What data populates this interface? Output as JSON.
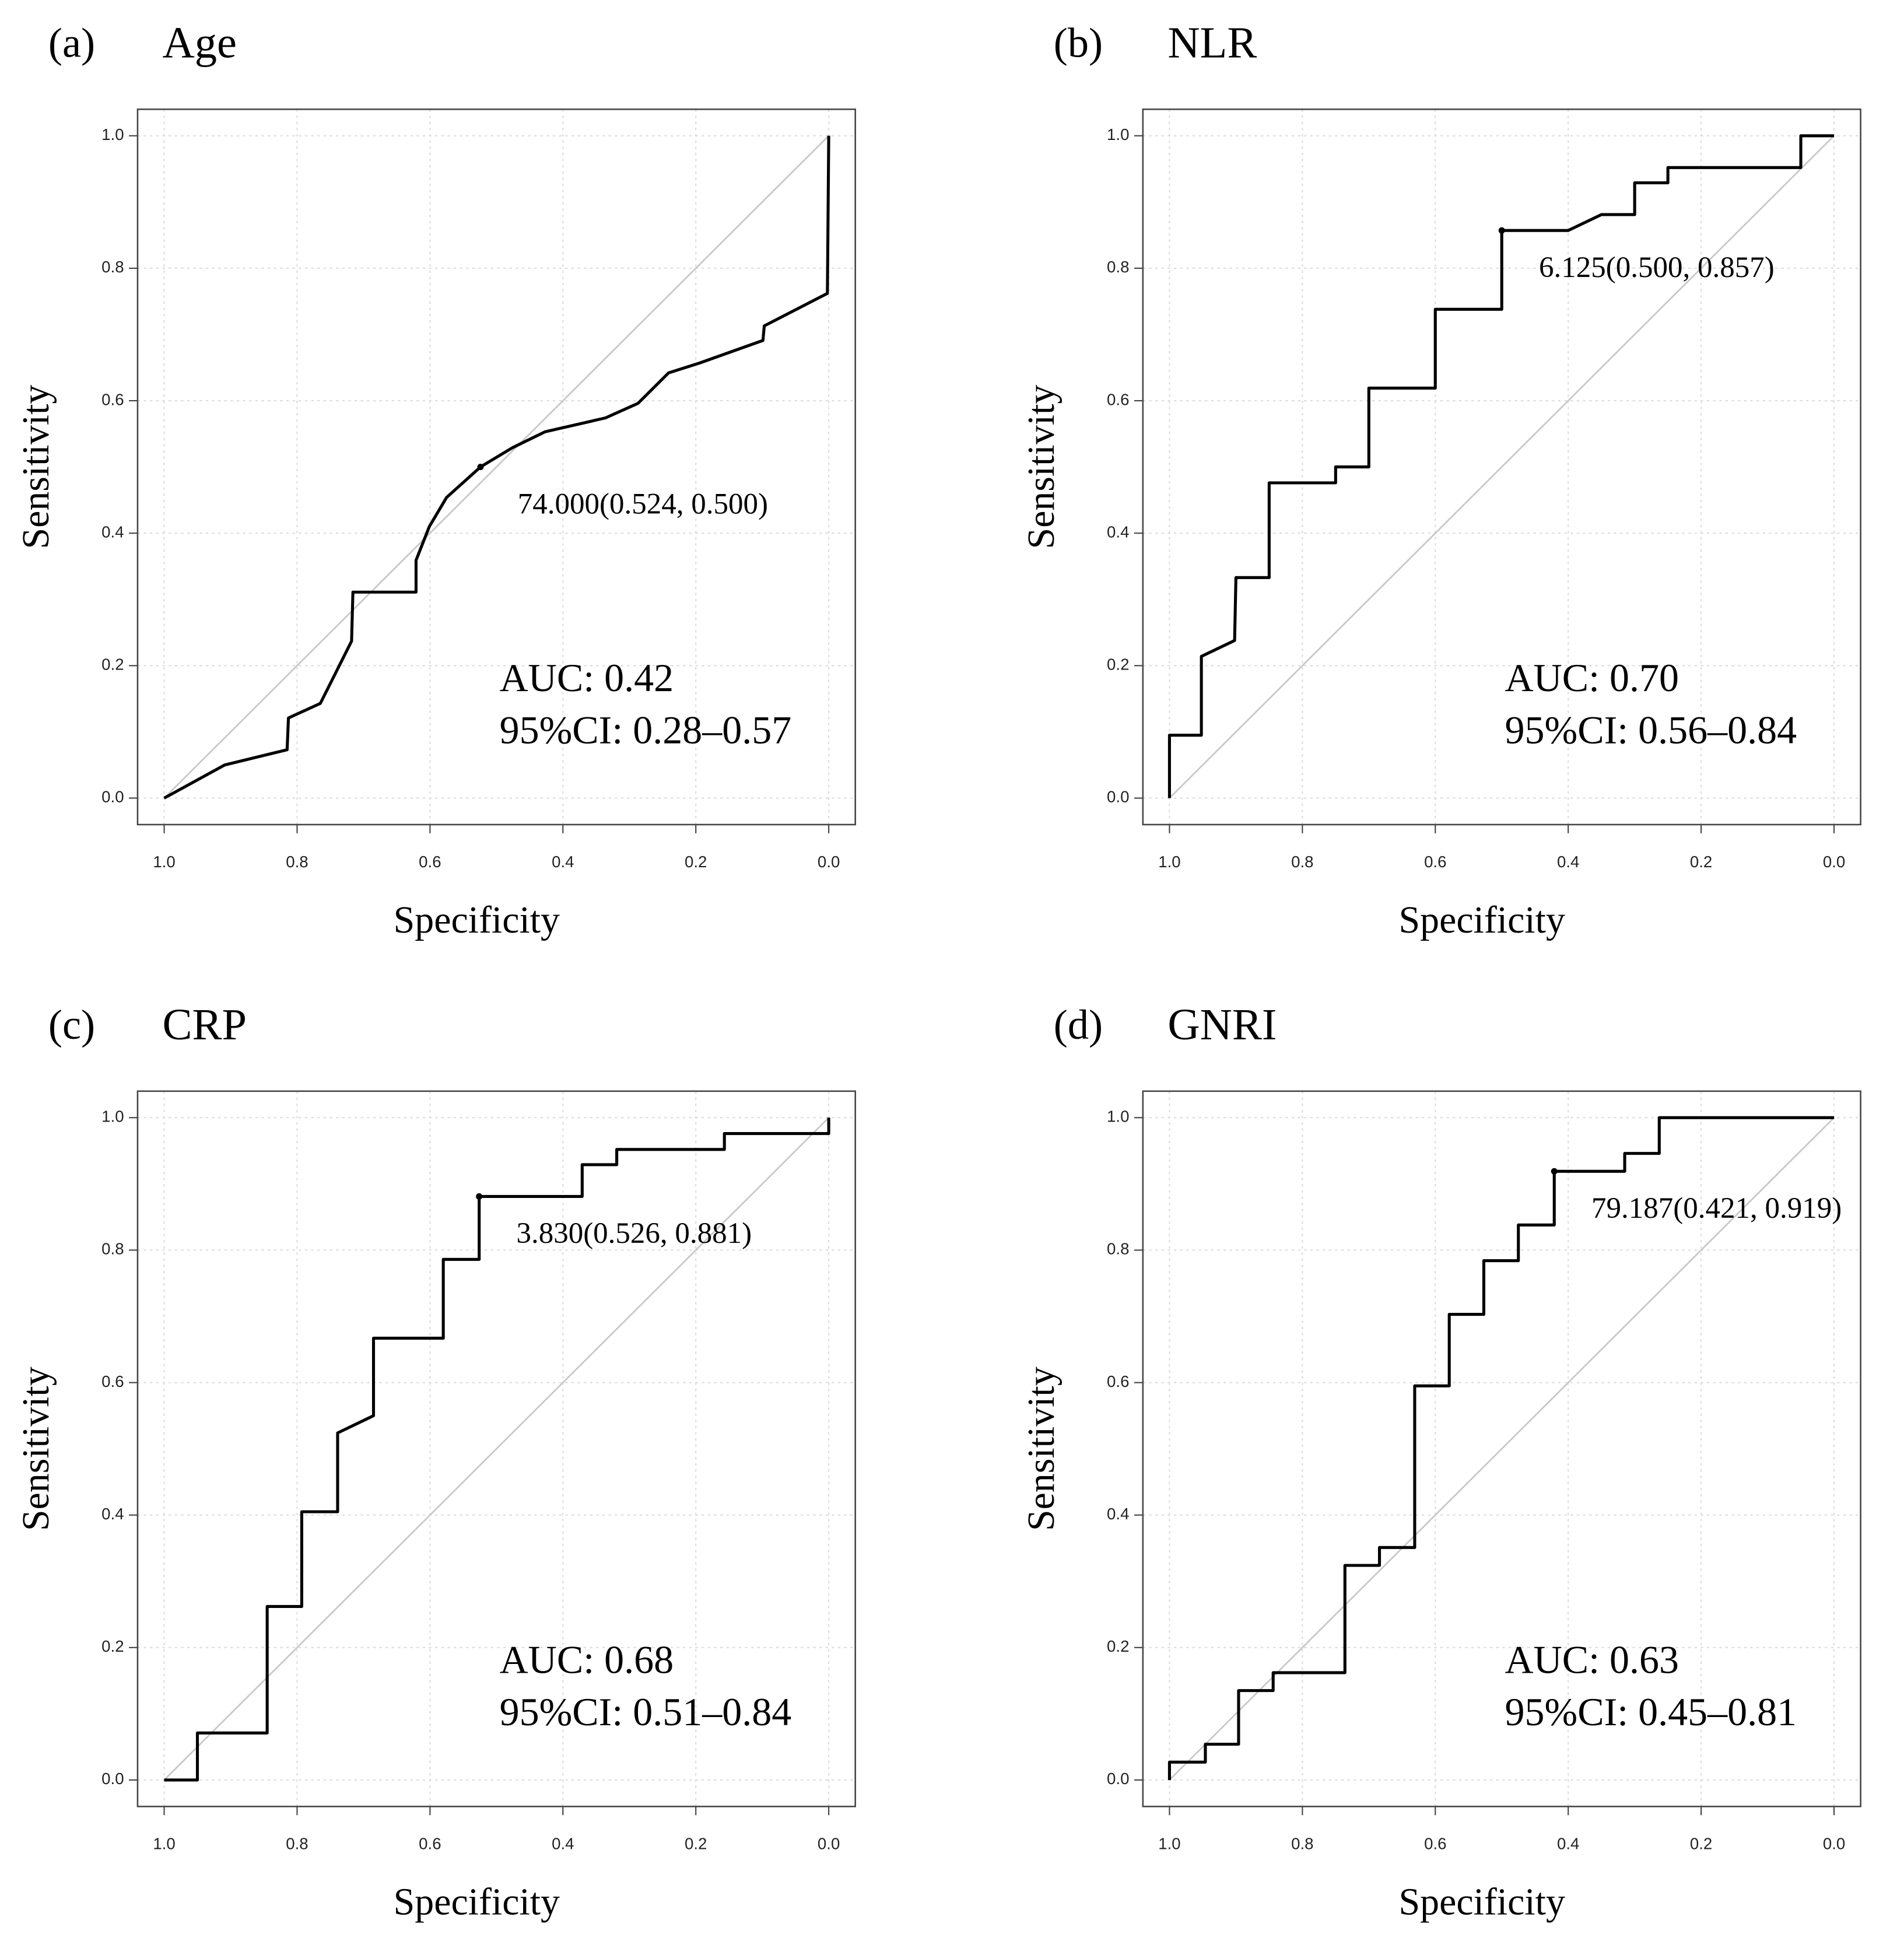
{
  "chart_data": [
    {
      "type": "line",
      "panel_label": "(a)",
      "title": "Age",
      "x_label": "Specificity",
      "y_label": "Sensitivity",
      "x": [
        1,
        0.909,
        0.815,
        0.813,
        0.765,
        0.718,
        0.716,
        0.621,
        0.621,
        0.601,
        0.575,
        0.524,
        0.476,
        0.427,
        0.336,
        0.287,
        0.241,
        0.194,
        0.099,
        0.097,
        0.002,
        0
      ],
      "values": [
        0,
        0.05,
        0.073,
        0.121,
        0.143,
        0.237,
        0.311,
        0.311,
        0.359,
        0.41,
        0.454,
        0.5,
        0.529,
        0.553,
        0.574,
        0.596,
        0.642,
        0.657,
        0.691,
        0.713,
        0.762,
        1
      ],
      "color": "#000000",
      "reference_color": "#c8c8c8",
      "grid_color": "#dcdcdc",
      "xlim": [
        1.04,
        -0.04
      ],
      "ylim": [
        -0.04,
        1.04
      ],
      "xticks": [
        {
          "value": 1,
          "label": "1.0"
        },
        0.8,
        0.6,
        0.4,
        0.2,
        {
          "value": 0,
          "label": "0.0"
        }
      ],
      "yticks": [
        {
          "value": 0,
          "label": "0.0"
        },
        0.2,
        0.4,
        0.6,
        0.8,
        {
          "value": 1,
          "label": "1.0"
        }
      ],
      "grid": true,
      "threshold": {
        "label": "74.000(0.524, 0.500)",
        "x": 0.524,
        "y": 0.5
      },
      "annotations": [
        "AUC: 0.42",
        "95%CI: 0.28–0.57"
      ]
    },
    {
      "type": "line",
      "panel_label": "(b)",
      "title": "NLR",
      "x_label": "Specificity",
      "y_label": "Sensitivity",
      "x": [
        1,
        1,
        0.952,
        0.952,
        0.902,
        0.9,
        0.85,
        0.85,
        0.75,
        0.75,
        0.7,
        0.7,
        0.6,
        0.6,
        0.5,
        0.5,
        0.4,
        0.35,
        0.3,
        0.3,
        0.25,
        0.25,
        0.05,
        0.05,
        0
      ],
      "values": [
        0,
        0.095,
        0.095,
        0.214,
        0.238,
        0.333,
        0.333,
        0.476,
        0.476,
        0.5,
        0.5,
        0.619,
        0.619,
        0.738,
        0.738,
        0.857,
        0.857,
        0.881,
        0.881,
        0.929,
        0.929,
        0.952,
        0.952,
        1,
        1
      ],
      "color": "#000000",
      "reference_color": "#c8c8c8",
      "grid_color": "#dcdcdc",
      "xlim": [
        1.04,
        -0.04
      ],
      "ylim": [
        -0.04,
        1.04
      ],
      "xticks": [
        {
          "value": 1,
          "label": "1.0"
        },
        0.8,
        0.6,
        0.4,
        0.2,
        {
          "value": 0,
          "label": "0.0"
        }
      ],
      "yticks": [
        {
          "value": 0,
          "label": "0.0"
        },
        0.2,
        0.4,
        0.6,
        0.8,
        {
          "value": 1,
          "label": "1.0"
        }
      ],
      "grid": true,
      "threshold": {
        "label": "6.125(0.500, 0.857)",
        "x": 0.5,
        "y": 0.857
      },
      "annotations": [
        "AUC: 0.70",
        "95%CI: 0.56–0.84"
      ]
    },
    {
      "type": "line",
      "panel_label": "(c)",
      "title": "CRP",
      "x_label": "Specificity",
      "y_label": "Sensitivity",
      "x": [
        1,
        0.95,
        0.95,
        0.845,
        0.845,
        0.793,
        0.793,
        0.739,
        0.739,
        0.685,
        0.685,
        0.58,
        0.58,
        0.526,
        0.526,
        0.371,
        0.371,
        0.319,
        0.319,
        0.157,
        0.157,
        0,
        0
      ],
      "values": [
        0,
        0,
        0.071,
        0.071,
        0.262,
        0.262,
        0.405,
        0.405,
        0.524,
        0.55,
        0.667,
        0.667,
        0.786,
        0.786,
        0.881,
        0.881,
        0.929,
        0.929,
        0.952,
        0.952,
        0.976,
        0.976,
        1
      ],
      "color": "#000000",
      "reference_color": "#c8c8c8",
      "grid_color": "#dcdcdc",
      "xlim": [
        1.04,
        -0.04
      ],
      "ylim": [
        -0.04,
        1.04
      ],
      "xticks": [
        {
          "value": 1,
          "label": "1.0"
        },
        0.8,
        0.6,
        0.4,
        0.2,
        {
          "value": 0,
          "label": "0.0"
        }
      ],
      "yticks": [
        {
          "value": 0,
          "label": "0.0"
        },
        0.2,
        0.4,
        0.6,
        0.8,
        {
          "value": 1,
          "label": "1.0"
        }
      ],
      "grid": true,
      "threshold": {
        "label": "3.830(0.526, 0.881)",
        "x": 0.526,
        "y": 0.881
      },
      "annotations": [
        "AUC: 0.68",
        "95%CI: 0.51–0.84"
      ]
    },
    {
      "type": "line",
      "panel_label": "(d)",
      "title": "GNRI",
      "x_label": "Specificity",
      "y_label": "Sensitivity",
      "x": [
        1,
        1,
        0.946,
        0.946,
        0.896,
        0.896,
        0.844,
        0.844,
        0.736,
        0.736,
        0.684,
        0.684,
        0.631,
        0.631,
        0.579,
        0.579,
        0.527,
        0.527,
        0.475,
        0.475,
        0.421,
        0.421,
        0.315,
        0.315,
        0.263,
        0.263,
        0
      ],
      "values": [
        0,
        0.027,
        0.027,
        0.054,
        0.054,
        0.135,
        0.135,
        0.162,
        0.162,
        0.324,
        0.324,
        0.351,
        0.351,
        0.595,
        0.595,
        0.703,
        0.703,
        0.784,
        0.784,
        0.838,
        0.838,
        0.919,
        0.919,
        0.946,
        0.946,
        1,
        1
      ],
      "color": "#000000",
      "reference_color": "#c8c8c8",
      "grid_color": "#dcdcdc",
      "xlim": [
        1.04,
        -0.04
      ],
      "ylim": [
        -0.04,
        1.04
      ],
      "xticks": [
        {
          "value": 1,
          "label": "1.0"
        },
        0.8,
        0.6,
        0.4,
        0.2,
        {
          "value": 0,
          "label": "0.0"
        }
      ],
      "yticks": [
        {
          "value": 0,
          "label": "0.0"
        },
        0.2,
        0.4,
        0.6,
        0.8,
        {
          "value": 1,
          "label": "1.0"
        }
      ],
      "grid": true,
      "threshold": {
        "label": "79.187(0.421, 0.919)",
        "x": 0.421,
        "y": 0.919
      },
      "annotations": [
        "AUC: 0.63",
        "95%CI: 0.45–0.81"
      ]
    }
  ]
}
